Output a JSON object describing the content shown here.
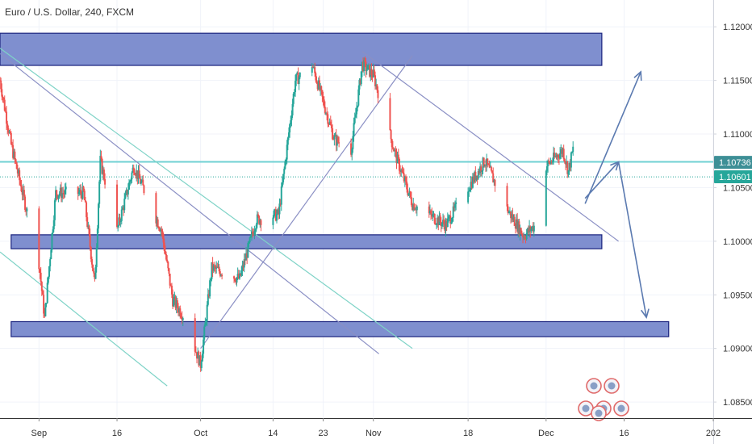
{
  "header": {
    "symbol_title": "Euro / U.S. Dollar, 240, FXCM"
  },
  "colors": {
    "up": "#26a69a",
    "down": "#ef5350",
    "zone_fill": "#7f8fcf",
    "zone_stroke": "#1a237e",
    "hline": "#6fd0d3",
    "trend_teal": "#7fd3c7",
    "trend_gray": "#8a8fc4",
    "arrow": "#5b7ab0",
    "price_badge_dark": "#3d8f96",
    "price_badge_light": "#26a69a",
    "axis_text": "#333333",
    "grid": "#f0f3fa"
  },
  "chart_data": {
    "type": "candlestick",
    "symbol": "Euro / U.S. Dollar",
    "timeframe": "240",
    "source": "FXCM",
    "ylim": [
      1.0835,
      1.1225
    ],
    "y_ticks": [
      "1.12000",
      "1.11500",
      "1.11000",
      "1.10500",
      "1.10000",
      "1.09500",
      "1.09000",
      "1.08500"
    ],
    "y_tick_values": [
      1.12,
      1.115,
      1.11,
      1.105,
      1.1,
      1.095,
      1.09,
      1.085
    ],
    "x_ticks": [
      "Sep",
      "16",
      "Oct",
      "14",
      "23",
      "Nov",
      "18",
      "Dec",
      "16",
      "202"
    ],
    "x_tick_dates": [
      "2019-09-02",
      "2019-09-16",
      "2019-10-01",
      "2019-10-14",
      "2019-10-23",
      "2019-11-01",
      "2019-11-18",
      "2019-12-02",
      "2019-12-16",
      "2020-01-01"
    ],
    "x_range": [
      "2019-08-26",
      "2020-01-01"
    ],
    "price_labels": [
      {
        "value": "1.10736",
        "price": 1.10736,
        "style": "dark"
      },
      {
        "value": "1.10601",
        "price": 1.10601,
        "style": "light"
      }
    ],
    "anchors": [
      [
        "2019-08-26",
        1.115
      ],
      [
        "2019-08-28",
        1.109
      ],
      [
        "2019-09-02",
        1.098
      ],
      [
        "2019-09-03",
        1.0928
      ],
      [
        "2019-09-05",
        1.1045
      ],
      [
        "2019-09-10",
        1.1045
      ],
      [
        "2019-09-12",
        1.096
      ],
      [
        "2019-09-13",
        1.1075
      ],
      [
        "2019-09-16",
        1.101
      ],
      [
        "2019-09-19",
        1.107
      ],
      [
        "2019-09-24",
        1.101
      ],
      [
        "2019-09-26",
        1.0945
      ],
      [
        "2019-09-28",
        1.093
      ],
      [
        "2019-10-01",
        1.0885
      ],
      [
        "2019-10-03",
        1.0975
      ],
      [
        "2019-10-08",
        1.0965
      ],
      [
        "2019-10-11",
        1.102
      ],
      [
        "2019-10-15",
        1.1025
      ],
      [
        "2019-10-18",
        1.115
      ],
      [
        "2019-10-21",
        1.1165
      ],
      [
        "2019-10-25",
        1.1095
      ],
      [
        "2019-10-28",
        1.1085
      ],
      [
        "2019-10-30",
        1.1165
      ],
      [
        "2019-11-01",
        1.1155
      ],
      [
        "2019-11-05",
        1.108
      ],
      [
        "2019-11-08",
        1.1035
      ],
      [
        "2019-11-14",
        1.1015
      ],
      [
        "2019-11-18",
        1.105
      ],
      [
        "2019-11-21",
        1.1075
      ],
      [
        "2019-11-25",
        1.103
      ],
      [
        "2019-11-28",
        1.1005
      ],
      [
        "2019-12-01",
        1.102
      ],
      [
        "2019-12-02",
        1.107
      ],
      [
        "2019-12-05",
        1.1085
      ],
      [
        "2019-12-06",
        1.1065
      ],
      [
        "2019-12-07",
        1.109
      ],
      [
        "2019-12-08",
        1.106
      ]
    ],
    "zones": [
      {
        "start": "2019-08-26",
        "end": "2019-12-12",
        "top": 1.1194,
        "bottom": 1.1164
      },
      {
        "start": "2019-08-28",
        "end": "2019-12-12",
        "top": 1.1006,
        "bottom": 1.0993
      },
      {
        "start": "2019-08-28",
        "end": "2019-12-24",
        "top": 1.0925,
        "bottom": 1.0911
      }
    ],
    "hline": 1.1074,
    "lines": [
      {
        "style": "teal",
        "p1": [
          "2019-08-26",
          1.118
        ],
        "p2": [
          "2019-11-08",
          1.09
        ]
      },
      {
        "style": "teal",
        "p1": [
          "2019-08-26",
          1.099
        ],
        "p2": [
          "2019-09-25",
          1.0865
        ]
      },
      {
        "style": "gray",
        "p1": [
          "2019-08-26",
          1.1175
        ],
        "p2": [
          "2019-11-02",
          1.0895
        ]
      },
      {
        "style": "gray",
        "p1": [
          "2019-10-01",
          1.09
        ],
        "p2": [
          "2019-11-08",
          1.1173
        ]
      },
      {
        "style": "gray",
        "p1": [
          "2019-10-30",
          1.1177
        ],
        "p2": [
          "2019-12-15",
          1.1
        ]
      }
    ],
    "arrows": [
      {
        "from": [
          "2019-12-09",
          1.1035
        ],
        "to": [
          "2019-12-19",
          1.1158
        ]
      },
      {
        "from": [
          "2019-12-09",
          1.104
        ],
        "to": [
          "2019-12-15",
          1.1074
        ]
      },
      {
        "from": [
          "2019-12-15",
          1.1074
        ],
        "to": [
          "2019-12-20",
          1.0929
        ]
      }
    ]
  }
}
